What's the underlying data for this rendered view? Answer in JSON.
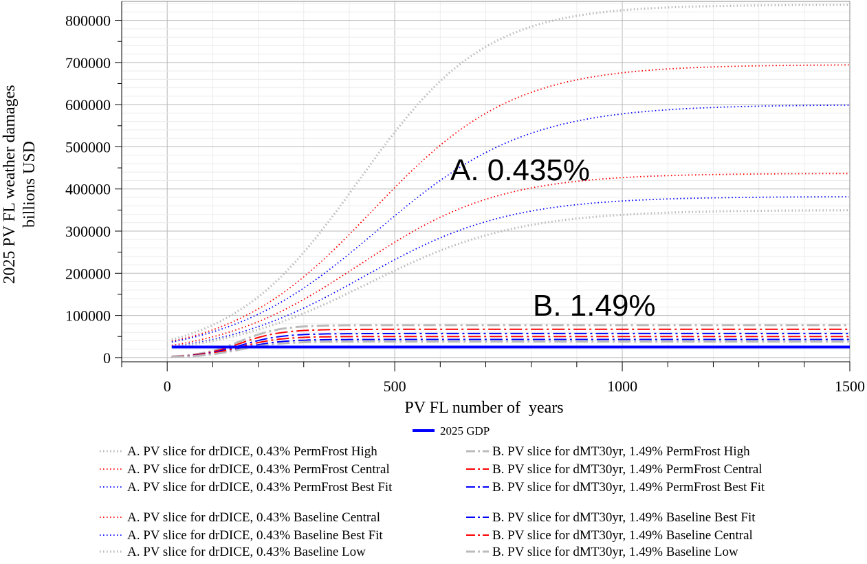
{
  "chart_data": {
    "type": "line",
    "title": "",
    "xlabel": "PV FL number of  years",
    "ylabel": [
      "2025 PV FL weather damages",
      "billions USD"
    ],
    "xlim": [
      -100,
      1500
    ],
    "ylim": [
      -10000,
      845000
    ],
    "x_ticks": [
      0,
      500,
      1000,
      1500
    ],
    "x_tick_labels": [
      "0",
      "500",
      "1000",
      "1500"
    ],
    "y_ticks": [
      0,
      100000,
      200000,
      300000,
      400000,
      500000,
      600000,
      700000,
      800000
    ],
    "y_tick_labels": [
      "0",
      "100000",
      "200000",
      "300000",
      "400000",
      "500000",
      "600000",
      "700000",
      "800000"
    ],
    "grid": true,
    "annotations": [
      {
        "text": "A. 0.435%",
        "x": 700,
        "y": 430000
      },
      {
        "text": "B. 1.49%",
        "x": 700,
        "y": 125000
      }
    ],
    "gdp": {
      "name": "2025 GDP",
      "value": 25000,
      "x_range": [
        10,
        1500
      ],
      "color": "#0000ff"
    },
    "series": [
      {
        "name": "A. PV slice for drDICE, 0.43% PermFrost High",
        "group": "A",
        "style": "dot",
        "color": "#bbbbbb",
        "asymptote": 837000,
        "midpoint": 420,
        "scale": 140
      },
      {
        "name": "A. PV slice for drDICE, 0.43% PermFrost Central",
        "group": "A",
        "style": "dot",
        "color": "#ff0000",
        "asymptote": 695000,
        "midpoint": 450,
        "scale": 155
      },
      {
        "name": "A. PV slice for drDICE, 0.43% PermFrost Best Fit",
        "group": "A",
        "style": "dot",
        "color": "#0000ff",
        "asymptote": 600000,
        "midpoint": 460,
        "scale": 165
      },
      {
        "name": "A. PV slice for drDICE, 0.43% Baseline Central",
        "group": "A",
        "style": "dot",
        "color": "#ff0000",
        "asymptote": 437000,
        "midpoint": 420,
        "scale": 155
      },
      {
        "name": "A. PV slice for drDICE, 0.43% Baseline Best Fit",
        "group": "A",
        "style": "dot",
        "color": "#0000ff",
        "asymptote": 382000,
        "midpoint": 430,
        "scale": 160
      },
      {
        "name": "A. PV slice for drDICE, 0.43% Baseline Low",
        "group": "A",
        "style": "dot",
        "color": "#bbbbbb",
        "asymptote": 350000,
        "midpoint": 440,
        "scale": 165
      },
      {
        "name": "B. PV slice for dMT30yr, 1.49%  PermFrost High",
        "group": "B",
        "style": "dashdot",
        "color": "#bbbbbb",
        "asymptote": 77000,
        "midpoint": 160,
        "scale": 45
      },
      {
        "name": "B. PV slice for dMT30yr, 1.49%  PermFrost Central",
        "group": "B",
        "style": "dashdot",
        "color": "#ff0000",
        "asymptote": 67000,
        "midpoint": 160,
        "scale": 45
      },
      {
        "name": "B. PV slice for dMT30yr, 1.49%  PermFrost Best Fit",
        "group": "B",
        "style": "dashdot",
        "color": "#0000ff",
        "asymptote": 57000,
        "midpoint": 160,
        "scale": 45
      },
      {
        "name": "B. PV slice for dMT30yr, 1.49%  Baseline Best Fit",
        "group": "B",
        "style": "dashdot",
        "color": "#0000ff",
        "asymptote": 43000,
        "midpoint": 160,
        "scale": 45
      },
      {
        "name": "B. PV slice for dMT30yr, 1.49%  Baseline Central",
        "group": "B",
        "style": "dashdot",
        "color": "#ff0000",
        "asymptote": 50000,
        "midpoint": 160,
        "scale": 45
      },
      {
        "name": "B. PV slice for dMT30yr, 1.49%  Baseline Low",
        "group": "B",
        "style": "dashdot",
        "color": "#bbbbbb",
        "asymptote": 38000,
        "midpoint": 160,
        "scale": 45
      }
    ],
    "legend_placement": "bottom"
  }
}
